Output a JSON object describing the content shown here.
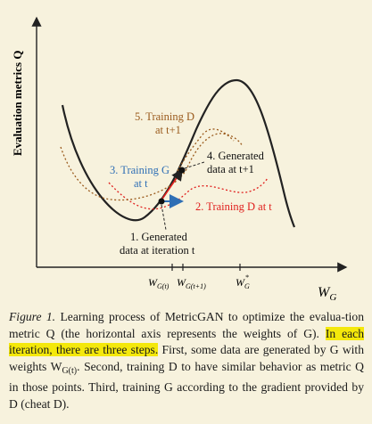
{
  "figure": {
    "y_axis_label": "Evaluation metrics Q",
    "x_axis_label_main": "W",
    "x_axis_label_sub": "G",
    "tick_labels": [
      {
        "main": "W",
        "sub": "G(t)"
      },
      {
        "main": "W",
        "sub": "G(t+1)"
      },
      {
        "main": "W",
        "sub": "G",
        "sup": "*"
      }
    ],
    "annotations": {
      "step1_line1": "1. Generated",
      "step1_line2": "data at iteration t",
      "step2": "2. Training D at t",
      "step3_line1": "3. Training G",
      "step3_line2": "at t",
      "step4_line1": "4. Generated",
      "step4_line2": "data at t+1",
      "step5_line1": "5. Training D",
      "step5_line2": "at t+1"
    },
    "colors": {
      "curve": "#222222",
      "blue": "#2f6fb5",
      "red": "#e0201e",
      "brown": "#9a5a1c",
      "highlight": "#f4e80b"
    }
  },
  "caption": {
    "label": "Figure 1.",
    "text_a": " Learning process of MetricGAN to optimize the evalua-tion metric Q (the horizontal axis represents the weights of G). ",
    "highlight": "In each iteration, there are three steps.",
    "text_b": " First, some data are generated by G with weights W",
    "text_b_sub": "G(t)",
    "text_c": ". Second, training D to have similar behavior as metric Q in those points. Third, training G according to the gradient provided by D (cheat D)."
  }
}
